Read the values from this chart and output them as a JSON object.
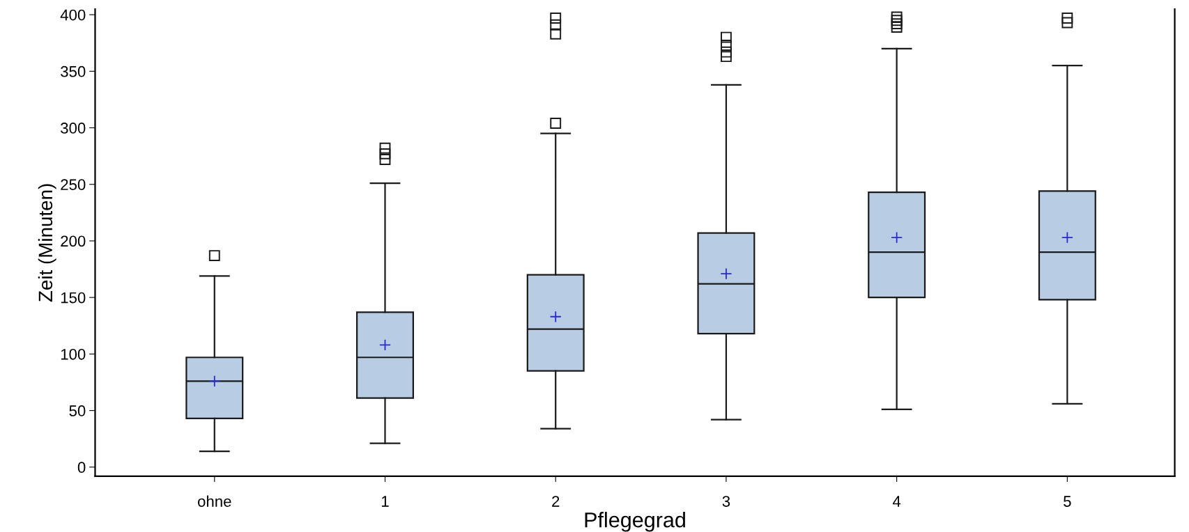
{
  "chart_data": {
    "type": "box",
    "xlabel": "Pflegegrad",
    "ylabel": "Zeit (Minuten)",
    "categories": [
      "ohne",
      "1",
      "2",
      "3",
      "4",
      "5"
    ],
    "boxes": [
      {
        "low": 14,
        "q1": 43,
        "median": 76,
        "q3": 97,
        "high": 169,
        "mean": 76,
        "outliers": [
          187
        ]
      },
      {
        "low": 21,
        "q1": 61,
        "median": 97,
        "q3": 137,
        "high": 251,
        "mean": 108,
        "outliers": [
          272,
          277,
          282
        ]
      },
      {
        "low": 34,
        "q1": 85,
        "median": 122,
        "q3": 170,
        "high": 295,
        "mean": 133,
        "outliers": [
          304,
          383,
          391,
          397
        ]
      },
      {
        "low": 42,
        "q1": 118,
        "median": 162,
        "q3": 207,
        "high": 338,
        "mean": 171,
        "outliers": [
          363,
          367,
          373,
          380
        ]
      },
      {
        "low": 51,
        "q1": 150,
        "median": 190,
        "q3": 243,
        "high": 370,
        "mean": 203,
        "outliers": [
          389,
          392,
          395,
          398
        ]
      },
      {
        "low": 56,
        "q1": 148,
        "median": 190,
        "q3": 244,
        "high": 355,
        "mean": 203,
        "outliers": [
          393,
          397
        ]
      }
    ],
    "color": "#b8cce4",
    "ylim": [
      -8,
      405
    ],
    "yticks": [
      0,
      50,
      100,
      150,
      200,
      250,
      300,
      350,
      400
    ],
    "grid": false
  }
}
